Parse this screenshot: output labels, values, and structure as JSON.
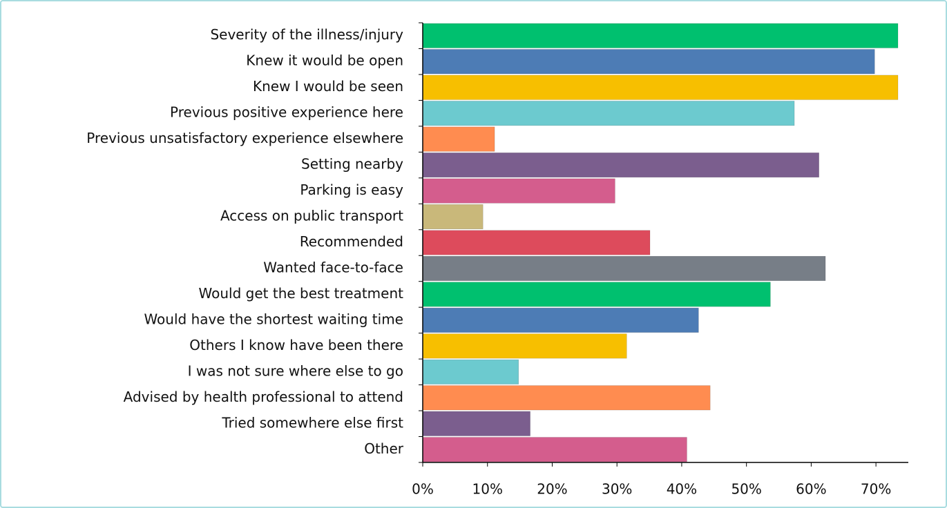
{
  "chart_data": {
    "type": "bar",
    "orientation": "horizontal",
    "categories": [
      "Severity of the illness/injury",
      "Knew it would be open",
      "Knew I would be seen",
      "Previous positive experience here",
      "Previous unsatisfactory experience elsewhere",
      "Setting nearby",
      "Parking is easy",
      "Access on public transport",
      "Recommended",
      "Wanted face-to-face",
      "Would get the best treatment",
      "Would have the shortest waiting time",
      "Others I know have been there",
      "I was not sure where else to go",
      "Advised by health professional to attend",
      "Tried somewhere else first",
      "Other"
    ],
    "values": [
      73.4,
      69.8,
      73.4,
      57.4,
      11.1,
      61.2,
      29.7,
      9.3,
      35.1,
      62.2,
      53.7,
      42.6,
      31.5,
      14.8,
      44.4,
      16.6,
      40.8
    ],
    "colors": [
      "#00c06f",
      "#4d7cb5",
      "#f7bf00",
      "#6ccacf",
      "#ff8c50",
      "#7b5e8e",
      "#d45d8d",
      "#c9b87a",
      "#dd4b5c",
      "#777e87",
      "#00c06f",
      "#4d7cb5",
      "#f7bf00",
      "#6ccacf",
      "#ff8c50",
      "#7b5e8e",
      "#d45d8d"
    ],
    "xlim": [
      0,
      75
    ],
    "xticks": [
      {
        "value": 0,
        "label": "0%"
      },
      {
        "value": 10,
        "label": "10%"
      },
      {
        "value": 20,
        "label": "20%"
      },
      {
        "value": 30,
        "label": "30%"
      },
      {
        "value": 40,
        "label": "40%"
      },
      {
        "value": 50,
        "label": "50%"
      },
      {
        "value": 60,
        "label": "60%"
      },
      {
        "value": 70,
        "label": "70%"
      }
    ]
  }
}
